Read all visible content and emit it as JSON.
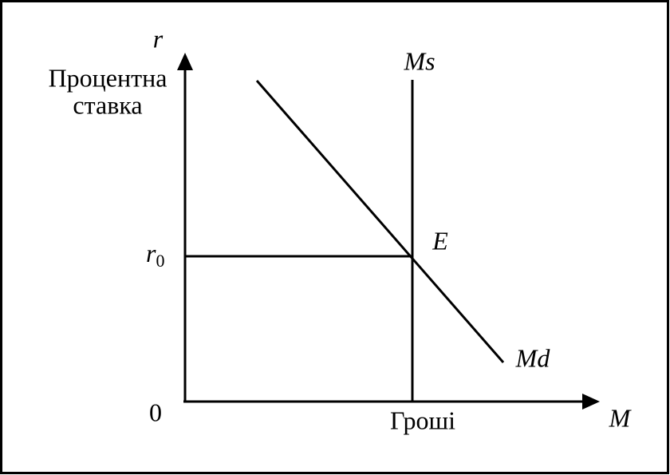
{
  "axes": {
    "y": {
      "symbol": "r",
      "label": [
        "Процентна",
        "ставка"
      ]
    },
    "x": {
      "symbol": "M",
      "label": "Гроші"
    },
    "origin": "0"
  },
  "curves": {
    "supply": "Ms",
    "demand": "Md"
  },
  "equilibrium": {
    "point": "E",
    "rate": {
      "symbol": "r",
      "subscript": "0"
    }
  }
}
